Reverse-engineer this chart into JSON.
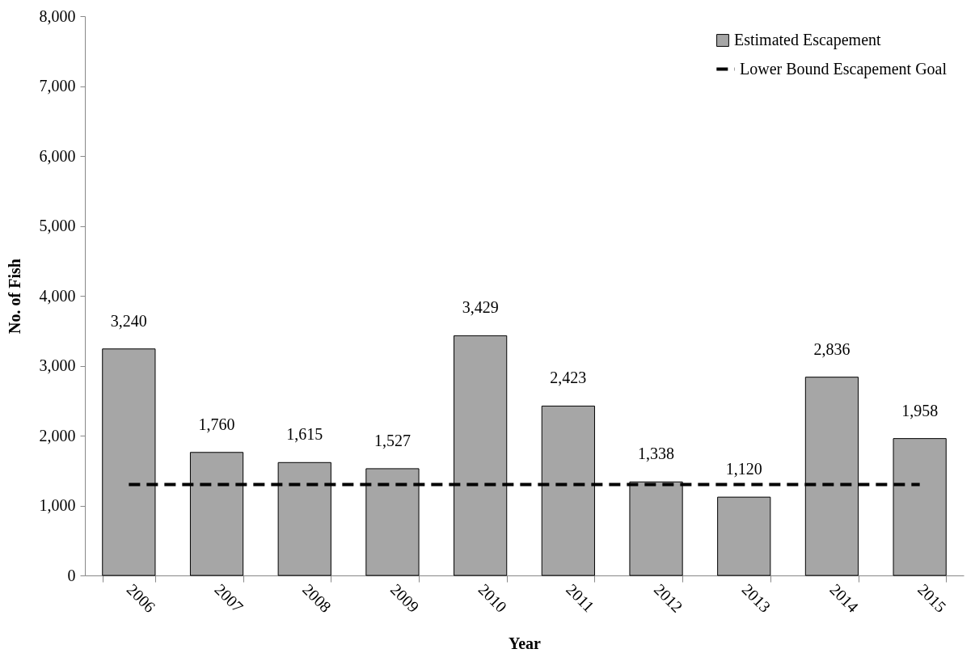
{
  "chart_data": {
    "type": "bar",
    "xlabel": "Year",
    "ylabel": "No. of  Fish",
    "categories": [
      "2006",
      "2007",
      "2008",
      "2009",
      "2010",
      "2011",
      "2012",
      "2013",
      "2014",
      "2015"
    ],
    "series": [
      {
        "name": "Estimated Escapement",
        "type": "bar",
        "color": "#a6a6a6",
        "values": [
          3240,
          1760,
          1615,
          1527,
          3429,
          2423,
          1338,
          1120,
          2836,
          1958
        ],
        "value_labels": [
          "3,240",
          "1,760",
          "1,615",
          "1,527",
          "3,429",
          "2,423",
          "1,338",
          "1,120",
          "2,836",
          "1,958"
        ]
      },
      {
        "name": "Lower Bound Escapement Goal",
        "type": "line",
        "color": "#000000",
        "line_style": "dashed",
        "values": [
          1300,
          1300,
          1300,
          1300,
          1300,
          1300,
          1300,
          1300,
          1300,
          1300
        ]
      }
    ],
    "ylim": [
      0,
      8000
    ],
    "yticks": [
      0,
      {
        "value": 1000,
        "label": "1,000"
      },
      {
        "value": 2000,
        "label": "2,000"
      },
      {
        "value": 3000,
        "label": "3,000"
      },
      {
        "value": 4000,
        "label": "4,000"
      },
      {
        "value": 5000,
        "label": "5,000"
      },
      {
        "value": 6000,
        "label": "6,000"
      },
      {
        "value": 7000,
        "label": "7,000"
      },
      {
        "value": 8000,
        "label": "8,000"
      }
    ],
    "grid": false,
    "legend": "top right"
  }
}
